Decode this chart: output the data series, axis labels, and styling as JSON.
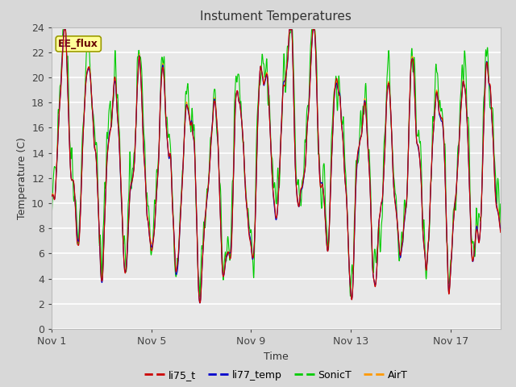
{
  "title": "Instument Temperatures",
  "xlabel": "Time",
  "ylabel": "Temperature (C)",
  "ylim": [
    0,
    24
  ],
  "yticks": [
    0,
    2,
    4,
    6,
    8,
    10,
    12,
    14,
    16,
    18,
    20,
    22,
    24
  ],
  "xtick_positions": [
    0,
    4,
    8,
    12,
    16
  ],
  "xtick_labels": [
    "Nov 1",
    "Nov 5",
    "Nov 9",
    "Nov 13",
    "Nov 17"
  ],
  "annotation": "EE_flux",
  "legend_labels": [
    "li75_t",
    "li77_temp",
    "SonicT",
    "AirT"
  ],
  "line_colors": [
    "#cc0000",
    "#0000cc",
    "#00cc00",
    "#ff9900"
  ],
  "fig_facecolor": "#d8d8d8",
  "ax_facecolor": "#e8e8e8",
  "n_points": 1800,
  "days": 18
}
